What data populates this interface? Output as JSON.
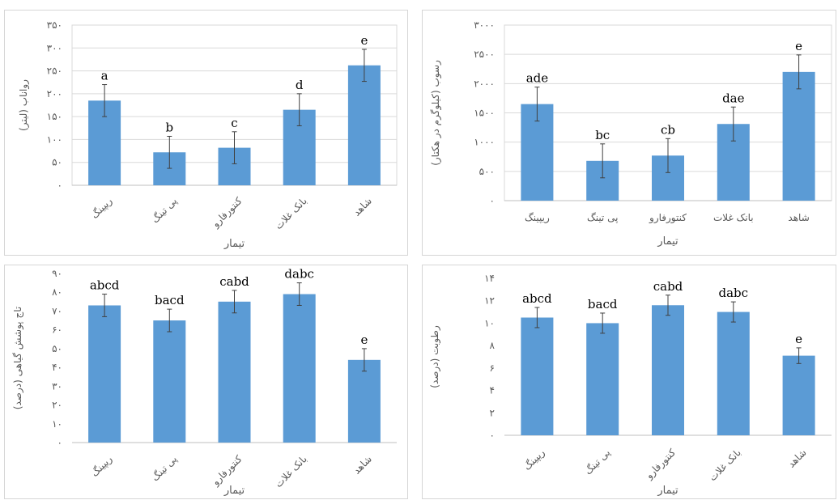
{
  "chart_data": [
    {
      "type": "bar",
      "categories": [
        "ریپینگ",
        "پی تینگ",
        "کنتورفارو",
        "بانک غلات",
        "شاهد"
      ],
      "values": [
        185,
        72,
        82,
        165,
        262
      ],
      "errors": [
        35,
        35,
        35,
        35,
        35
      ],
      "letters": [
        "a",
        "b",
        "c",
        "d",
        "e"
      ],
      "ylabel": "رواناب (لیتر)",
      "xlabel": "تیمار",
      "ylim": [
        0,
        350
      ],
      "yticks": [
        "۰",
        "۵۰",
        "۱۰۰",
        "۱۵۰",
        "۲۰۰",
        "۲۵۰",
        "۳۰۰",
        "۳۵۰"
      ],
      "tick_step": 50,
      "grid": true,
      "color": "#5b9bd5",
      "rotated_labels": true
    },
    {
      "type": "bar",
      "categories": [
        "ریپینگ",
        "پی تینگ",
        "کنتورفارو",
        "بانک غلات",
        "شاهد"
      ],
      "values": [
        1650,
        680,
        770,
        1310,
        2200
      ],
      "errors": [
        290,
        290,
        290,
        290,
        290
      ],
      "letters": [
        "ade",
        "bc",
        "cb",
        "dae",
        "e"
      ],
      "ylabel": "رسوب (کیلوگرم در هکتار)",
      "xlabel": "تیمار",
      "ylim": [
        0,
        3000
      ],
      "yticks": [
        "۰",
        "۵۰۰",
        "۱۰۰۰",
        "۱۵۰۰",
        "۲۰۰۰",
        "۲۵۰۰",
        "۳۰۰۰"
      ],
      "tick_step": 500,
      "grid": true,
      "color": "#5b9bd5",
      "rotated_labels": false
    },
    {
      "type": "bar",
      "categories": [
        "ریپینگ",
        "پی تینگ",
        "کنتورفارو",
        "بانک غلات",
        "شاهد"
      ],
      "values": [
        73,
        65,
        75,
        79,
        44
      ],
      "errors": [
        6,
        6,
        6,
        6,
        6
      ],
      "letters": [
        "abcd",
        "bacd",
        "cabd",
        "dabc",
        "e"
      ],
      "ylabel": "تاج پوشش گیاهی (درصد)",
      "xlabel": "تیمار",
      "ylim": [
        0,
        90
      ],
      "yticks": [
        "۰",
        "۱۰",
        "۲۰",
        "۳۰",
        "۴۰",
        "۵۰",
        "۶۰",
        "۷۰",
        "۸۰",
        "۹۰"
      ],
      "tick_step": 10,
      "grid": false,
      "color": "#5b9bd5",
      "rotated_labels": true
    },
    {
      "type": "bar",
      "categories": [
        "ریپینگ",
        "پی تینگ",
        "کنتورفارو",
        "بانک غلات",
        "شاهد"
      ],
      "values": [
        10.5,
        10.0,
        11.6,
        11.0,
        7.1
      ],
      "errors": [
        0.9,
        0.9,
        0.9,
        0.9,
        0.7
      ],
      "letters": [
        "abcd",
        "bacd",
        "cabd",
        "dabc",
        "e"
      ],
      "ylabel": "رطوبت (درصد)",
      "xlabel": "تیمار",
      "ylim": [
        0,
        14
      ],
      "yticks": [
        "۰",
        "۲",
        "۴",
        "۶",
        "۸",
        "۱۰",
        "۱۲",
        "۱۴"
      ],
      "tick_step": 2,
      "grid": false,
      "color": "#5b9bd5",
      "rotated_labels": true
    }
  ]
}
